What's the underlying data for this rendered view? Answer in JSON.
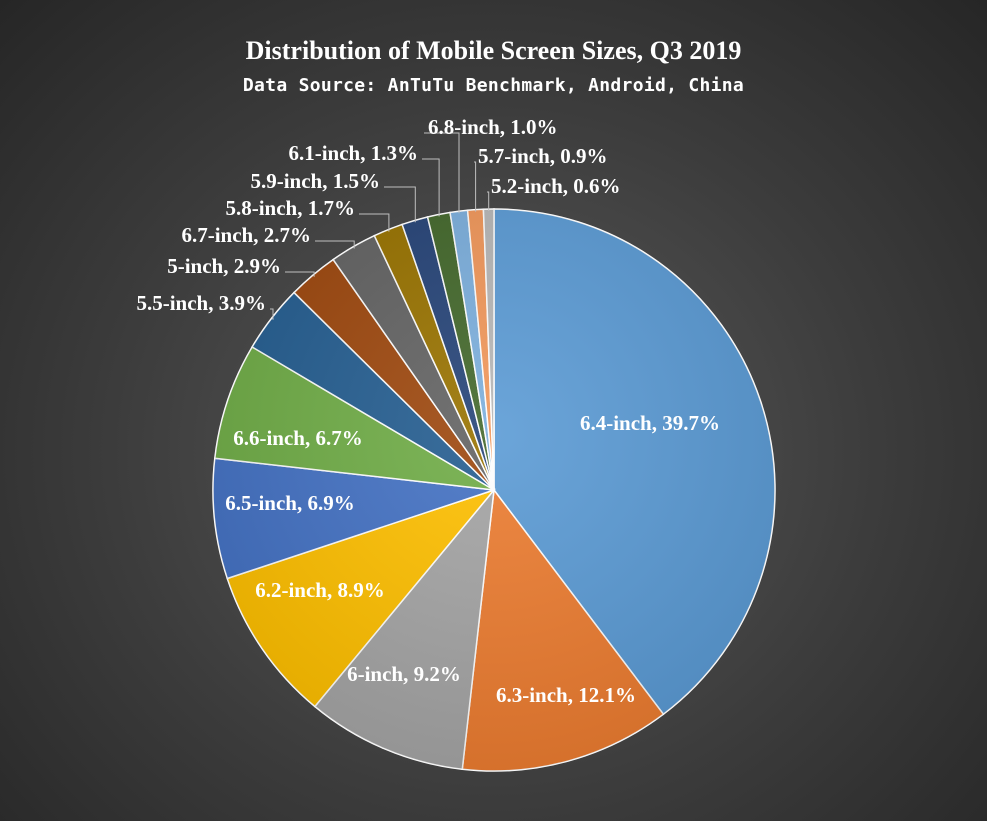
{
  "chart_data": {
    "type": "pie",
    "title": "Distribution of Mobile Screen Sizes, Q3 2019",
    "subtitle": "Data Source: AnTuTu Benchmark, Android, China",
    "start_angle": "top, clockwise",
    "slices": [
      {
        "label": "6.4-inch, 39.7%",
        "value": 39.7,
        "color": "#5b9bd5"
      },
      {
        "label": "6.3-inch, 12.1%",
        "value": 12.1,
        "color": "#ed7d31"
      },
      {
        "label": "6-inch, 9.2%",
        "value": 9.2,
        "color": "#a5a5a5"
      },
      {
        "label": "6.2-inch, 8.9%",
        "value": 8.9,
        "color": "#ffc000"
      },
      {
        "label": "6.5-inch, 6.9%",
        "value": 6.9,
        "color": "#4472c4"
      },
      {
        "label": "6.6-inch, 6.7%",
        "value": 6.7,
        "color": "#70ad47"
      },
      {
        "label": "5.5-inch, 3.9%",
        "value": 3.9,
        "color": "#255e91"
      },
      {
        "label": "5-inch, 2.9%",
        "value": 2.9,
        "color": "#9e480e"
      },
      {
        "label": "6.7-inch, 2.7%",
        "value": 2.7,
        "color": "#636363"
      },
      {
        "label": "5.8-inch, 1.7%",
        "value": 1.7,
        "color": "#997300"
      },
      {
        "label": "5.9-inch, 1.5%",
        "value": 1.5,
        "color": "#264478"
      },
      {
        "label": "6.1-inch, 1.3%",
        "value": 1.3,
        "color": "#43682b"
      },
      {
        "label": "6.8-inch, 1.0%",
        "value": 1.0,
        "color": "#7cafdd"
      },
      {
        "label": "5.7-inch, 0.9%",
        "value": 0.9,
        "color": "#f1975a"
      },
      {
        "label": "5.2-inch, 0.6%",
        "value": 0.6,
        "color": "#b7b7b7"
      }
    ]
  }
}
